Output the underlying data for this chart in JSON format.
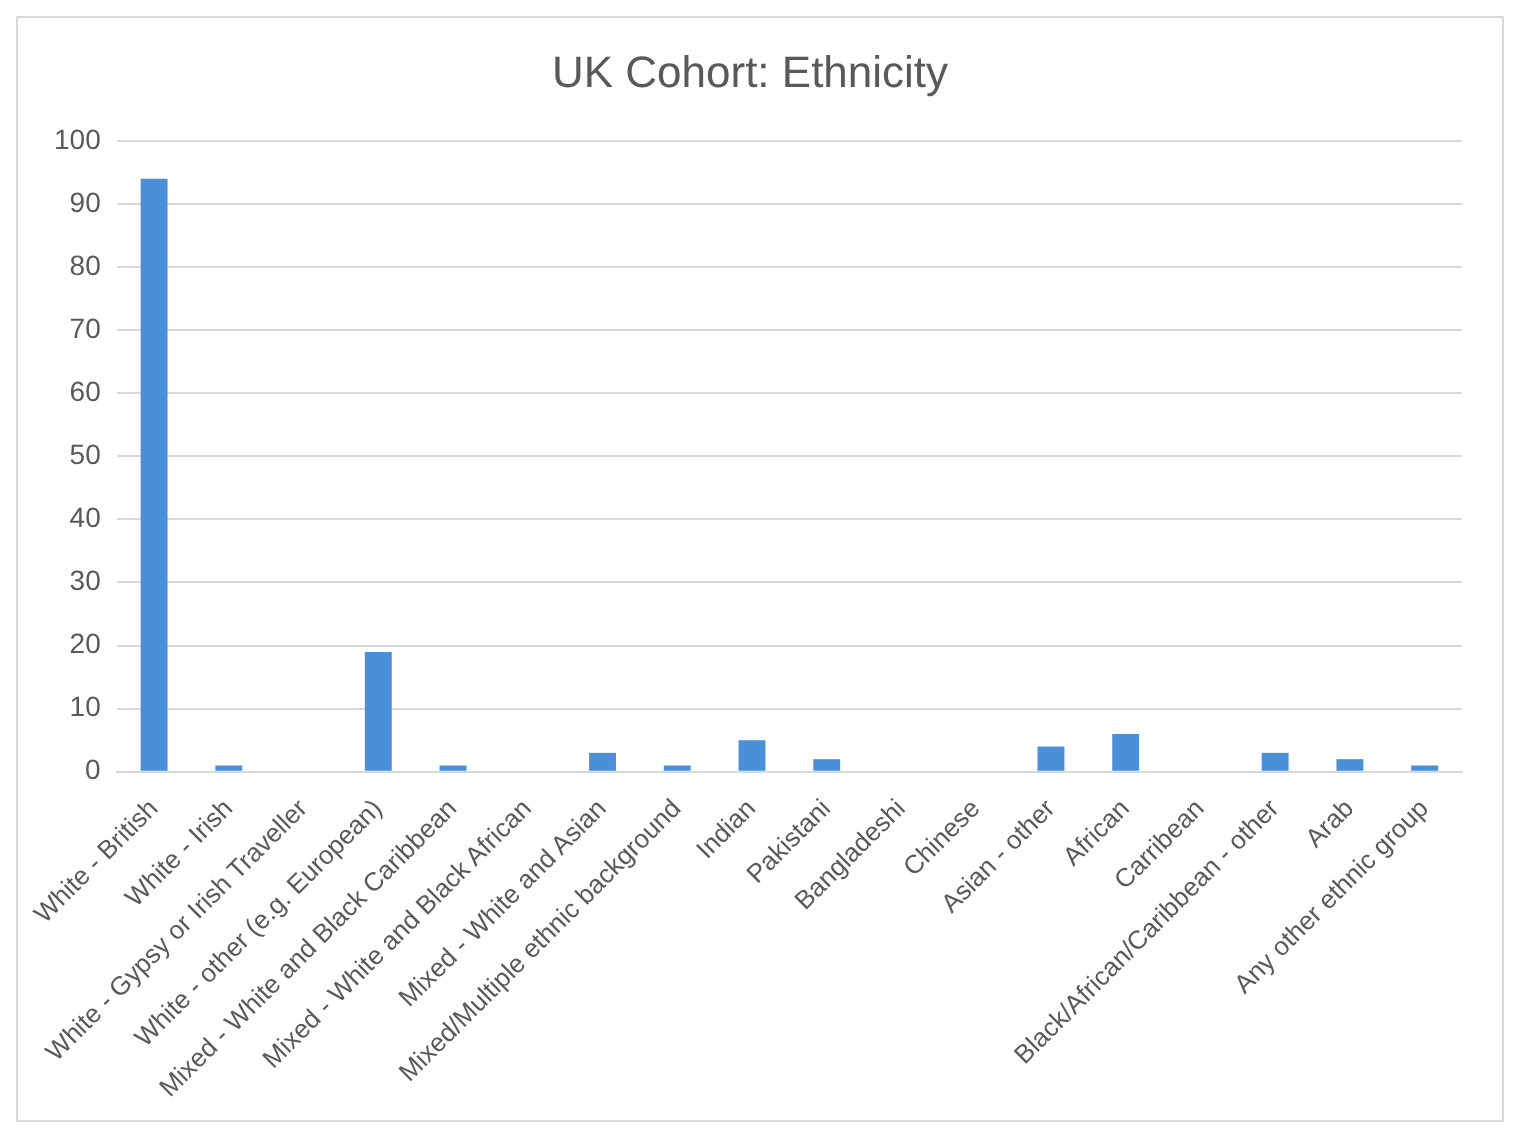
{
  "chart_data": {
    "type": "bar",
    "title": "UK Cohort: Ethnicity",
    "categories": [
      "White - British",
      "White - Irish",
      "White - Gypsy or Irish Traveller",
      "White - other (e.g. European)",
      "Mixed - White and Black Caribbean",
      "Mixed - White and Black African",
      "Mixed - White and Asian",
      "Mixed/Multiple ethnic background",
      "Indian",
      "Pakistani",
      "Bangladeshi",
      "Chinese",
      "Asian - other",
      "African",
      "Carribean",
      "Black/African/Caribbean - other",
      "Arab",
      "Any other ethnic group"
    ],
    "values": [
      94,
      1,
      0,
      19,
      1,
      0,
      3,
      1,
      5,
      2,
      0,
      0,
      4,
      6,
      0,
      3,
      2,
      1
    ],
    "color": "#4a90d9",
    "ylim": [
      0,
      100
    ],
    "yticks": [
      0,
      10,
      20,
      30,
      40,
      50,
      60,
      70,
      80,
      90,
      100
    ],
    "grid": "y",
    "legend": false
  }
}
